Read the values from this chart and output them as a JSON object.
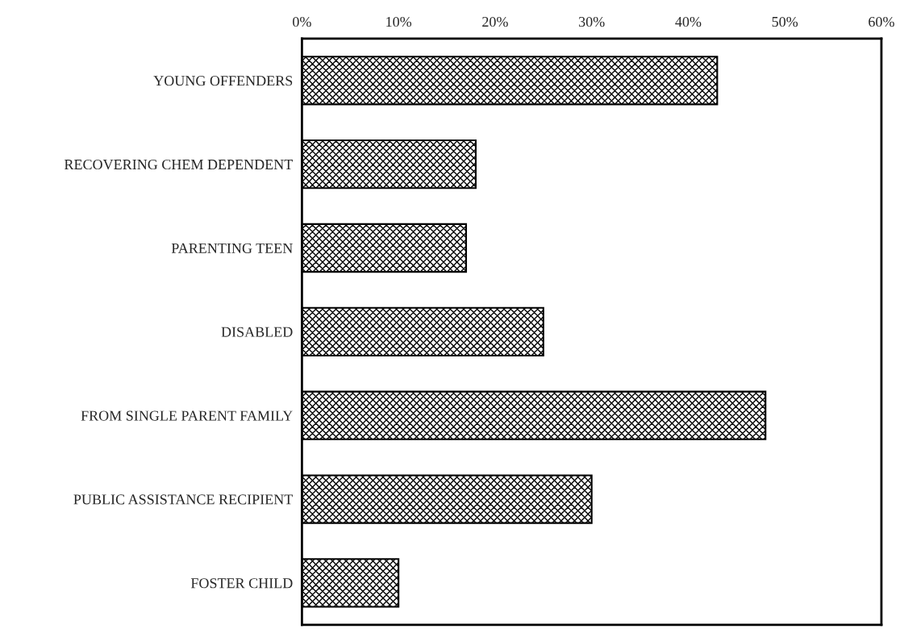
{
  "chart_data": {
    "type": "bar",
    "orientation": "horizontal",
    "categories": [
      "YOUNG OFFENDERS",
      "RECOVERING CHEM DEPENDENT",
      "PARENTING TEEN",
      "DISABLED",
      "FROM SINGLE PARENT FAMILY",
      "PUBLIC ASSISTANCE RECIPIENT",
      "FOSTER CHILD"
    ],
    "values": [
      43,
      18,
      17,
      25,
      48,
      30,
      10
    ],
    "color": "#000000",
    "xlim": [
      0,
      60
    ],
    "xticks": [
      {
        "value": 0,
        "label": "0%"
      },
      {
        "value": 10,
        "label": "10%"
      },
      {
        "value": 20,
        "label": "20%"
      },
      {
        "value": 30,
        "label": "30%"
      },
      {
        "value": 40,
        "label": "40%"
      },
      {
        "value": 50,
        "label": "50%"
      },
      {
        "value": 60,
        "label": "60%"
      }
    ],
    "grid": false,
    "legend": false
  }
}
